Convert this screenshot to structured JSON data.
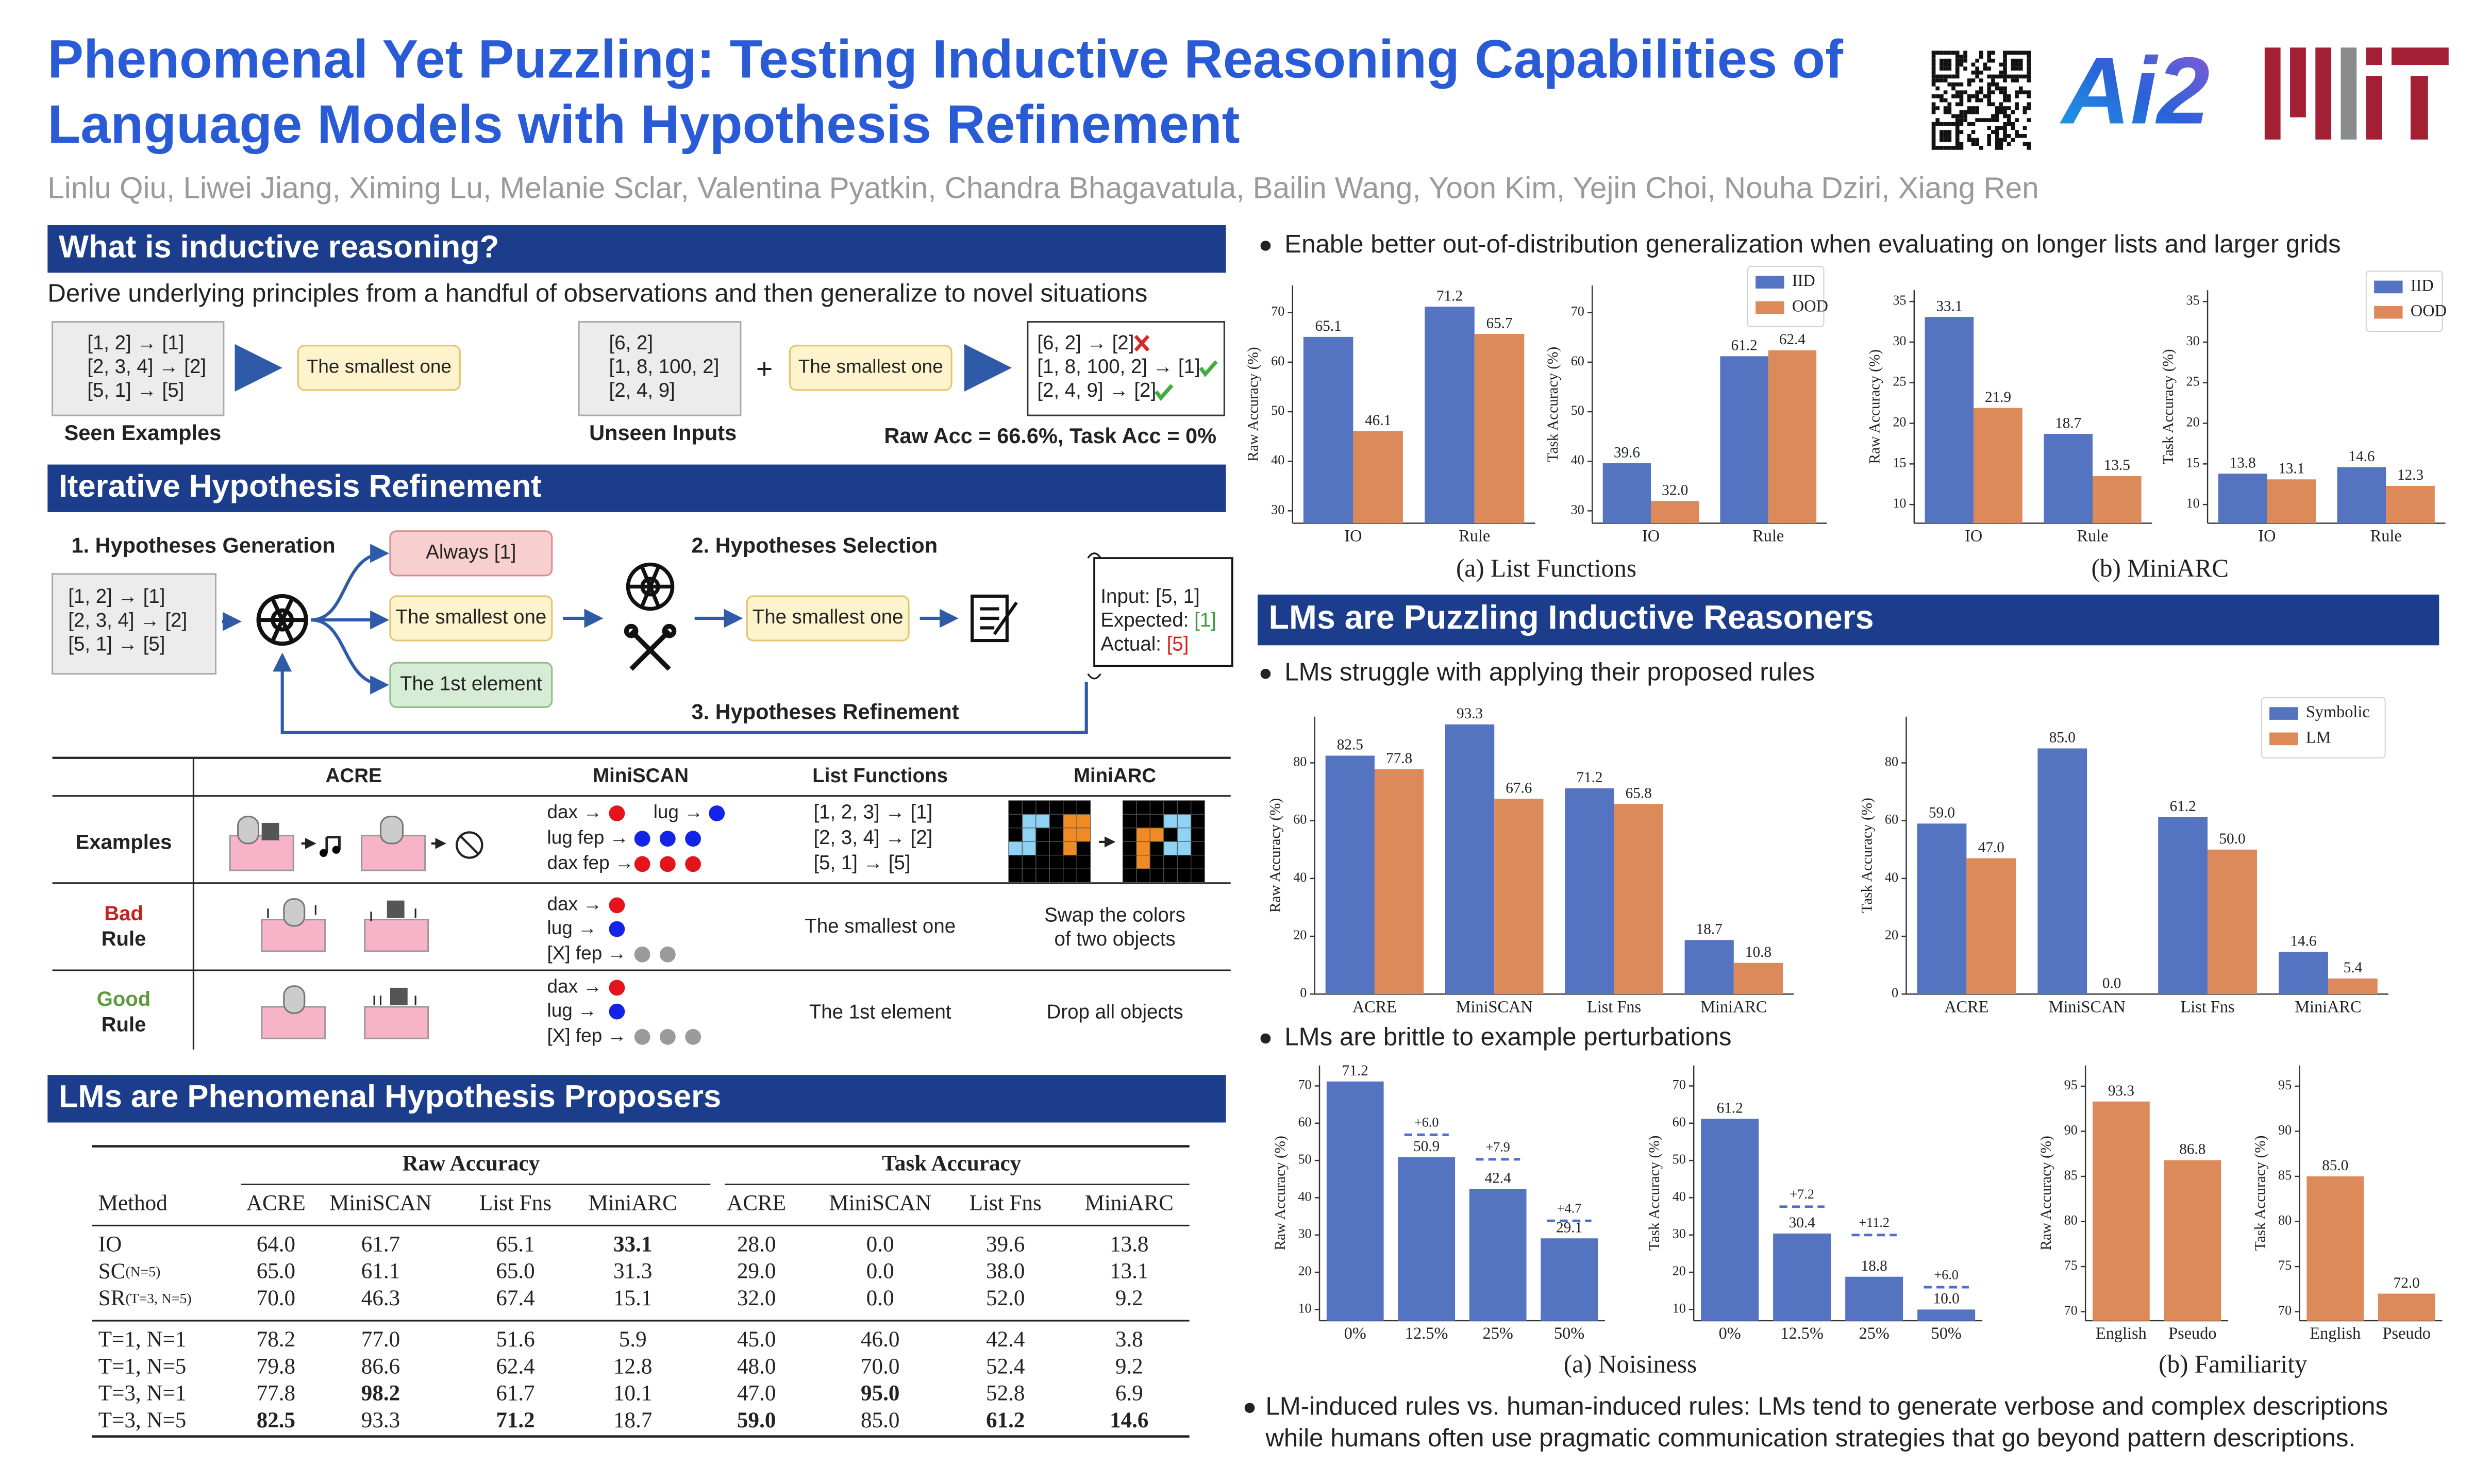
{
  "header": {
    "title_lines": [
      "Phenomenal Yet Puzzling: Testing Inductive Reasoning Capabilities of",
      "Language Models with Hypothesis Refinement"
    ],
    "authors": "Linlu Qiu, Liwei Jiang, Ximing Lu, Melanie Sclar, Valentina Pyatkin, Chandra Bhagavatula, Bailin Wang,  Yoon Kim, Yejin Choi, Nouha Dziri, Xiang Ren",
    "logo": "Ai2"
  },
  "intro": {
    "heading": "What is inductive reasoning?",
    "text": "Derive underlying principles from a handful of observations and then generalize to novel situations",
    "seen_examples": [
      "[1, 2] → [1]",
      "[2, 3, 4] → [2]",
      "[5, 1] → [5]"
    ],
    "seen_label": "Seen Examples",
    "rule": "The smallest one",
    "unseen_inputs": [
      "[6, 2]",
      "[1, 8, 100, 2]",
      "[2,  4, 9]"
    ],
    "unseen_label": "Unseen Inputs",
    "plus": "+",
    "rule_applied": "The smallest one",
    "outputs": [
      "[6, 2] → [2]",
      "[1, 8, 100, 2]  → [1]",
      "[2, 4, 9] → [2]"
    ],
    "accuracy": "Raw Acc = 66.6%, Task Acc = 0%"
  },
  "refinement": {
    "heading": "Iterative Hypothesis Refinement",
    "step1": "1. Hypotheses Generation",
    "step2": "2. Hypotheses Selection",
    "step3": "3. Hypotheses Refinement",
    "examples": [
      "[1, 2] → [1]",
      "[2, 3, 4] → [2]",
      "[5, 1] → [5]"
    ],
    "hypotheses": [
      "Always [1]",
      "The smallest one",
      "The 1st element"
    ],
    "selected": "The smallest one",
    "feedback": {
      "input": "Input: [5, 1]",
      "expected_label": "Expected: ",
      "expected": "[1]",
      "actual_label": "Actual: ",
      "actual": "[5]"
    }
  },
  "tasks_table": {
    "columns": [
      "ACRE",
      "MiniSCAN",
      "List Functions",
      "MiniARC"
    ],
    "row_labels": [
      [
        "Examples"
      ],
      [
        "Bad",
        "Rule"
      ],
      [
        "Good",
        "Rule"
      ]
    ],
    "miniscan": {
      "examples": [
        {
          "text": "dax →",
          "dots": [
            "#e3141b"
          ]
        },
        {
          "text": "lug →",
          "dots": [
            "#1424e6"
          ]
        },
        {
          "text": "lug fep →",
          "dots": [
            "#1424e6",
            "#1424e6",
            "#1424e6"
          ]
        },
        {
          "text": "dax fep →",
          "dots": [
            "#e3141b",
            "#e3141b",
            "#e3141b"
          ]
        }
      ],
      "bad": [
        {
          "text": "dax →",
          "dots": [
            "#e3141b"
          ]
        },
        {
          "text": "lug →",
          "dots": [
            "#1424e6"
          ]
        },
        {
          "text": "[X] fep →",
          "dots": [
            "#9a9a9a",
            "#9a9a9a"
          ]
        }
      ],
      "good": [
        {
          "text": "dax →",
          "dots": [
            "#e3141b"
          ]
        },
        {
          "text": "lug →",
          "dots": [
            "#1424e6"
          ]
        },
        {
          "text": "[X] fep →",
          "dots": [
            "#9a9a9a",
            "#9a9a9a",
            "#9a9a9a"
          ]
        }
      ]
    },
    "list_functions": {
      "examples": [
        "[1, 2, 3] → [1]",
        "[2, 3, 4] → [2]",
        "[5, 1] → [5]"
      ],
      "bad": "The smallest one",
      "good": "The 1st element"
    },
    "miniarc": {
      "bad": [
        "Swap  the colors",
        "of two objects"
      ],
      "good": "Drop all objects"
    }
  },
  "results_table": {
    "heading": "LMs are Phenomenal Hypothesis Proposers",
    "groups": [
      "Raw Accuracy",
      "Task Accuracy"
    ],
    "columns": [
      "Method",
      "ACRE",
      "MiniSCAN",
      "List Fns",
      "MiniARC",
      "ACRE",
      "MiniSCAN",
      "List Fns",
      "MiniARC"
    ],
    "rows": [
      {
        "method": "IO",
        "cells": [
          "64.0",
          "61.7",
          "65.1",
          "33.1",
          "28.0",
          "0.0",
          "39.6",
          "13.8"
        ],
        "bold": [
          3
        ]
      },
      {
        "method": "SC",
        "note": "(N=5)",
        "cells": [
          "65.0",
          "61.1",
          "65.0",
          "31.3",
          "29.0",
          "0.0",
          "38.0",
          "13.1"
        ],
        "bold": []
      },
      {
        "method": "SR",
        "note": "(T=3, N=5)",
        "cells": [
          "70.0",
          "46.3",
          "67.4",
          "15.1",
          "32.0",
          "0.0",
          "52.0",
          "9.2"
        ],
        "bold": []
      },
      {
        "method": "T=1, N=1",
        "cells": [
          "78.2",
          "77.0",
          "51.6",
          "5.9",
          "45.0",
          "46.0",
          "42.4",
          "3.8"
        ],
        "bold": []
      },
      {
        "method": "T=1, N=5",
        "cells": [
          "79.8",
          "86.6",
          "62.4",
          "12.8",
          "48.0",
          "70.0",
          "52.4",
          "9.2"
        ],
        "bold": []
      },
      {
        "method": "T=3, N=1",
        "cells": [
          "77.8",
          "98.2",
          "61.7",
          "10.1",
          "47.0",
          "95.0",
          "52.8",
          "6.9"
        ],
        "bold": [
          1,
          5
        ]
      },
      {
        "method": "T=3, N=5",
        "cells": [
          "82.5",
          "93.3",
          "71.2",
          "18.7",
          "59.0",
          "85.0",
          "61.2",
          "14.6"
        ],
        "bold": [
          0,
          2,
          4,
          6,
          7
        ]
      }
    ]
  },
  "right": {
    "bullet_ood": "Enable better out-of-distribution generalization when evaluating on longer lists and larger grids",
    "heading": "LMs are Puzzling Inductive Reasoners",
    "bullet_apply": "LMs struggle with applying their proposed rules",
    "bullet_perturb": "LMs are brittle to example perturbations",
    "bullet_human": [
      "LM-induced rules vs. human-induced rules: LMs tend to generate verbose and complex descriptions",
      "while humans often use pragmatic communication strategies that go beyond pattern descriptions."
    ],
    "captions": [
      "(a) List Functions",
      "(b) MiniARC",
      "(a) Noisiness",
      "(b) Familiarity"
    ]
  },
  "chart_data": [
    {
      "type": "bar",
      "ylabel": "Raw Accuracy (%)",
      "categories": [
        "IO",
        "Rule"
      ],
      "ylim": [
        27.5,
        75.5
      ],
      "yticks": [
        30,
        40,
        50,
        60,
        70
      ],
      "series": [
        {
          "name": "IID",
          "color": "#5473c0",
          "values": [
            65.1,
            71.2
          ],
          "value_labels": [
            "65.1",
            "71.2"
          ]
        },
        {
          "name": "OOD",
          "color": "#dd8a5b",
          "values": [
            46.1,
            65.7
          ],
          "value_labels": [
            "46.1",
            "65.7"
          ]
        }
      ]
    },
    {
      "type": "bar",
      "ylabel": "Task Accuracy (%)",
      "categories": [
        "IO",
        "Rule"
      ],
      "ylim": [
        27.5,
        75.5
      ],
      "yticks": [
        30,
        40,
        50,
        60,
        70
      ],
      "legend": "upper right",
      "series": [
        {
          "name": "IID",
          "color": "#5473c0",
          "values": [
            39.6,
            61.2
          ],
          "value_labels": [
            "39.6",
            "61.2"
          ]
        },
        {
          "name": "OOD",
          "color": "#dd8a5b",
          "values": [
            32.0,
            62.4
          ],
          "value_labels": [
            "32.0",
            "62.4"
          ]
        }
      ]
    },
    {
      "type": "bar",
      "ylabel": "Raw Accuracy (%)",
      "categories": [
        "IO",
        "Rule"
      ],
      "ylim": [
        7.7,
        36.4
      ],
      "yticks": [
        10,
        15,
        20,
        25,
        30,
        35
      ],
      "series": [
        {
          "name": "IID",
          "color": "#5473c0",
          "values": [
            33.1,
            18.7
          ],
          "value_labels": [
            "33.1",
            "18.7"
          ]
        },
        {
          "name": "OOD",
          "color": "#dd8a5b",
          "values": [
            21.9,
            13.5
          ],
          "value_labels": [
            "21.9",
            "13.5"
          ]
        }
      ]
    },
    {
      "type": "bar",
      "ylabel": "Task Accuracy (%)",
      "categories": [
        "IO",
        "Rule"
      ],
      "ylim": [
        7.7,
        36.4
      ],
      "yticks": [
        10,
        15,
        20,
        25,
        30,
        35
      ],
      "legend": "upper right",
      "series": [
        {
          "name": "IID",
          "color": "#5473c0",
          "values": [
            13.8,
            14.6
          ],
          "value_labels": [
            "13.8",
            "14.6"
          ]
        },
        {
          "name": "OOD",
          "color": "#dd8a5b",
          "values": [
            13.1,
            12.3
          ],
          "value_labels": [
            "13.1",
            "12.3"
          ]
        }
      ]
    },
    {
      "type": "bar",
      "ylabel": "Raw Accuracy (%)",
      "categories": [
        "ACRE",
        "MiniSCAN",
        "List Fns",
        "MiniARC"
      ],
      "ylim": [
        0,
        96
      ],
      "yticks": [
        0,
        20,
        40,
        60,
        80
      ],
      "series": [
        {
          "name": "Symbolic",
          "color": "#5473c0",
          "values": [
            82.5,
            93.3,
            71.2,
            18.7
          ],
          "value_labels": [
            "82.5",
            "93.3",
            "71.2",
            "18.7"
          ]
        },
        {
          "name": "LM",
          "color": "#dd8a5b",
          "values": [
            77.8,
            67.6,
            65.8,
            10.8
          ],
          "value_labels": [
            "77.8",
            "67.6",
            "65.8",
            "10.8"
          ]
        }
      ]
    },
    {
      "type": "bar",
      "ylabel": "Task Accuracy (%)",
      "categories": [
        "ACRE",
        "MiniSCAN",
        "List Fns",
        "MiniARC"
      ],
      "ylim": [
        0,
        96
      ],
      "yticks": [
        0,
        20,
        40,
        60,
        80
      ],
      "legend": "upper right",
      "series": [
        {
          "name": "Symbolic",
          "color": "#5473c0",
          "values": [
            59.0,
            85.0,
            61.2,
            14.6
          ],
          "value_labels": [
            "59.0",
            "85.0",
            "61.2",
            "14.6"
          ]
        },
        {
          "name": "LM",
          "color": "#dd8a5b",
          "values": [
            47.0,
            0.0,
            50.0,
            5.4
          ],
          "value_labels": [
            "47.0",
            "0.0",
            "50.0",
            "5.4"
          ]
        }
      ]
    },
    {
      "type": "bar",
      "ylabel": "Raw Accuracy (%)",
      "categories": [
        "0%",
        "12.5%",
        "25%",
        "50%"
      ],
      "ylim": [
        7,
        75.5
      ],
      "yticks": [
        10,
        20,
        30,
        40,
        50,
        60,
        70
      ],
      "color": "#5473c0",
      "values": [
        71.2,
        50.9,
        42.4,
        29.1
      ],
      "value_labels": [
        "71.2",
        "50.9",
        "42.4",
        "29.1"
      ],
      "increases": [
        null,
        6.0,
        7.9,
        4.7
      ],
      "increase_labels": [
        null,
        "+6.0",
        "+7.9",
        "+4.7"
      ]
    },
    {
      "type": "bar",
      "ylabel": "Task Accuracy (%)",
      "categories": [
        "0%",
        "12.5%",
        "25%",
        "50%"
      ],
      "ylim": [
        7,
        75.5
      ],
      "yticks": [
        10,
        20,
        30,
        40,
        50,
        60,
        70
      ],
      "color": "#5473c0",
      "values": [
        61.2,
        30.4,
        18.8,
        10.0
      ],
      "value_labels": [
        "61.2",
        "30.4",
        "18.8",
        "10.0"
      ],
      "increases": [
        null,
        7.2,
        11.2,
        6.0
      ],
      "increase_labels": [
        null,
        "+7.2",
        "+11.2",
        "+6.0"
      ]
    },
    {
      "type": "bar",
      "ylabel": "Raw Accuracy (%)",
      "categories": [
        "English",
        "Pseudo"
      ],
      "ylim": [
        69,
        97.3
      ],
      "yticks": [
        70,
        75,
        80,
        85,
        90,
        95
      ],
      "color": "#dd8a5b",
      "values": [
        93.3,
        86.8
      ],
      "value_labels": [
        "93.3",
        "86.8"
      ]
    },
    {
      "type": "bar",
      "ylabel": "Task Accuracy (%)",
      "categories": [
        "English",
        "Pseudo"
      ],
      "ylim": [
        69,
        97.3
      ],
      "yticks": [
        70,
        75,
        80,
        85,
        90,
        95
      ],
      "color": "#dd8a5b",
      "values": [
        85.0,
        72.0
      ],
      "value_labels": [
        "85.0",
        "72.0"
      ]
    }
  ]
}
